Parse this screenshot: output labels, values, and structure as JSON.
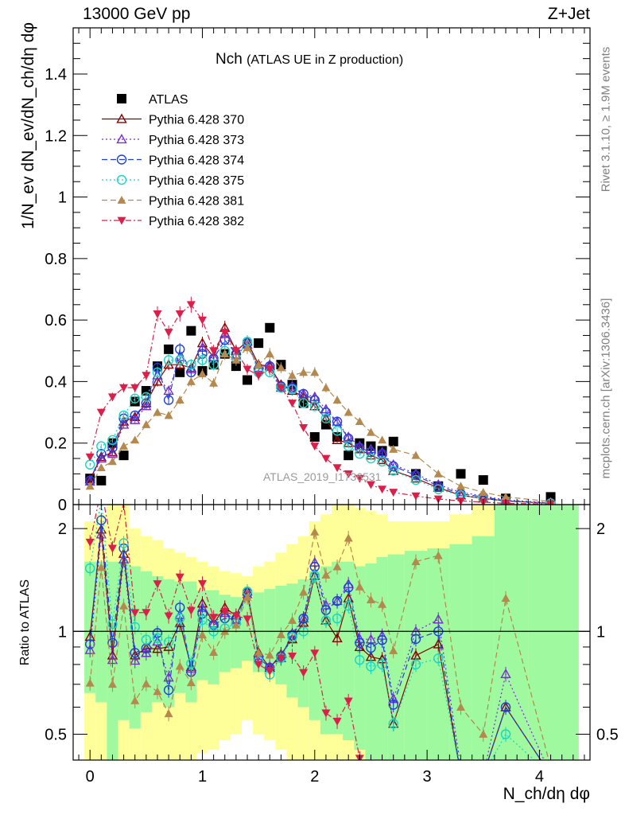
{
  "header": {
    "energy_label": "13000 GeV pp",
    "process_label": "Z+Jet",
    "title_main": "Nch",
    "title_sub": "(ATLAS UE in Z production)",
    "rivet_label": "Rivet 3.1.10, ≥ 1.9M events",
    "mcplots_label": "mcplots.cern.ch [arXiv:1306.3436]",
    "analysis_label": "ATLAS_2019_I1736531"
  },
  "axes": {
    "ylabel_top": "1/N_ev dN_ev/dN_ch/dη dφ",
    "ylabel_bottom": "Ratio to ATLAS",
    "xlabel": "N_ch/dη dφ",
    "x_ticks": [
      "0",
      "1",
      "2",
      "3",
      "4"
    ],
    "y_ticks_top": [
      "0",
      "0.2",
      "0.4",
      "0.6",
      "0.8",
      "1",
      "1.2",
      "1.4"
    ],
    "y_ticks_bottom": [
      "0.5",
      "1",
      "2"
    ]
  },
  "chart_data": {
    "type": "scatter",
    "xlabel": "N_ch/dη dφ",
    "ylabel": "1/N_ev dN_ev/dN_ch/dη dφ",
    "xlim": [
      -0.15,
      4.45
    ],
    "ylim": [
      0,
      1.55
    ],
    "ratio_ylabel": "Ratio to ATLAS",
    "ratio_ylim": [
      0.42,
      2.35
    ],
    "ratio_log": true,
    "x": [
      0.0,
      0.1,
      0.2,
      0.3,
      0.4,
      0.5,
      0.6,
      0.7,
      0.8,
      0.9,
      1.0,
      1.1,
      1.2,
      1.3,
      1.4,
      1.5,
      1.6,
      1.7,
      1.8,
      1.9,
      2.0,
      2.1,
      2.2,
      2.3,
      2.4,
      2.5,
      2.6,
      2.7,
      2.9,
      3.1,
      3.3,
      3.5,
      3.7,
      4.1
    ],
    "series": [
      {
        "name": "ATLAS",
        "color": "#000000",
        "marker": "square-filled",
        "values": [
          0.085,
          0.078,
          0.2,
          0.16,
          0.335,
          0.37,
          0.45,
          0.505,
          0.43,
          0.565,
          0.435,
          0.455,
          0.49,
          0.45,
          0.405,
          0.525,
          0.575,
          0.455,
          0.39,
          0.33,
          0.22,
          0.26,
          0.22,
          0.16,
          0.2,
          0.19,
          0.175,
          0.205,
          0.1,
          0.06,
          0.1,
          0.08,
          0.02,
          0.025
        ]
      },
      {
        "name": "Pythia 6.428 370",
        "color": "#8b0000",
        "marker": "triangle-up-open",
        "dash": "",
        "values": [
          0.082,
          0.155,
          0.17,
          0.27,
          0.285,
          0.33,
          0.4,
          0.455,
          0.455,
          0.445,
          0.525,
          0.48,
          0.575,
          0.5,
          0.53,
          0.455,
          0.45,
          0.39,
          0.37,
          0.35,
          0.32,
          0.28,
          0.21,
          0.2,
          0.18,
          0.16,
          0.145,
          0.11,
          0.085,
          0.055,
          0.03,
          0.02,
          0.012,
          0.004
        ]
      },
      {
        "name": "Pythia 6.428 373",
        "color": "#7b2fcf",
        "marker": "triangle-up-open",
        "dash": "2,3",
        "values": [
          0.075,
          0.15,
          0.165,
          0.26,
          0.275,
          0.32,
          0.42,
          0.37,
          0.48,
          0.44,
          0.51,
          0.48,
          0.555,
          0.485,
          0.52,
          0.445,
          0.455,
          0.38,
          0.385,
          0.36,
          0.35,
          0.31,
          0.27,
          0.22,
          0.19,
          0.18,
          0.17,
          0.13,
          0.1,
          0.065,
          0.04,
          0.028,
          0.015,
          0.006
        ]
      },
      {
        "name": "Pythia 6.428 374",
        "color": "#1f3fdc",
        "marker": "circle-open",
        "dash": "7,4",
        "values": [
          0.078,
          0.165,
          0.185,
          0.28,
          0.29,
          0.33,
          0.445,
          0.34,
          0.505,
          0.43,
          0.49,
          0.475,
          0.535,
          0.49,
          0.525,
          0.44,
          0.45,
          0.385,
          0.38,
          0.36,
          0.34,
          0.3,
          0.27,
          0.215,
          0.185,
          0.17,
          0.165,
          0.125,
          0.095,
          0.06,
          0.035,
          0.025,
          0.012,
          0.005
        ]
      },
      {
        "name": "Pythia 6.428 375",
        "color": "#17d6c4",
        "marker": "circle-open",
        "dash": "2,3",
        "values": [
          0.13,
          0.19,
          0.21,
          0.29,
          0.345,
          0.35,
          0.43,
          0.47,
          0.47,
          0.455,
          0.47,
          0.455,
          0.5,
          0.475,
          0.53,
          0.43,
          0.43,
          0.38,
          0.375,
          0.33,
          0.32,
          0.28,
          0.24,
          0.19,
          0.165,
          0.15,
          0.14,
          0.11,
          0.08,
          0.05,
          0.03,
          0.02,
          0.01,
          0.004
        ]
      },
      {
        "name": "Pythia 6.428 381",
        "color": "#b5884d",
        "marker": "triangle-up-filled",
        "dash": "7,4",
        "values": [
          0.06,
          0.12,
          0.14,
          0.19,
          0.21,
          0.26,
          0.3,
          0.29,
          0.34,
          0.4,
          0.425,
          0.395,
          0.49,
          0.47,
          0.51,
          0.455,
          0.49,
          0.445,
          0.42,
          0.43,
          0.43,
          0.38,
          0.34,
          0.3,
          0.27,
          0.235,
          0.21,
          0.18,
          0.16,
          0.1,
          0.06,
          0.04,
          0.025,
          0.01
        ]
      },
      {
        "name": "Pythia 6.428 382",
        "color": "#dc1f4a",
        "marker": "triangle-down-filled",
        "dash": "7,3,2,3",
        "values": [
          0.155,
          0.3,
          0.35,
          0.38,
          0.38,
          0.42,
          0.62,
          0.56,
          0.62,
          0.65,
          0.6,
          0.5,
          0.56,
          0.5,
          0.44,
          0.42,
          0.44,
          0.38,
          0.33,
          0.25,
          0.19,
          0.15,
          0.12,
          0.1,
          0.085,
          0.065,
          0.05,
          0.04,
          0.028,
          0.018,
          0.012,
          0.008,
          0.004,
          0.002
        ]
      }
    ],
    "ratio": {
      "band_inner": [
        [
          0.66,
          1.6
        ],
        [
          0.62,
          1.6
        ],
        [
          0.42,
          1.6
        ],
        [
          0.55,
          1.6
        ],
        [
          0.52,
          1.55
        ],
        [
          0.58,
          1.5
        ],
        [
          0.62,
          1.45
        ],
        [
          0.6,
          1.42
        ],
        [
          0.66,
          1.4
        ],
        [
          0.62,
          1.4
        ],
        [
          0.72,
          1.32
        ],
        [
          0.7,
          1.32
        ],
        [
          0.76,
          1.28
        ],
        [
          0.78,
          1.26
        ],
        [
          0.82,
          1.24
        ],
        [
          0.76,
          1.3
        ],
        [
          0.75,
          1.33
        ],
        [
          0.7,
          1.36
        ],
        [
          0.64,
          1.38
        ],
        [
          0.6,
          1.42
        ],
        [
          0.55,
          1.5
        ],
        [
          0.5,
          1.55
        ],
        [
          0.5,
          1.6
        ],
        [
          0.48,
          1.6
        ],
        [
          0.45,
          1.55
        ],
        [
          0.42,
          1.58
        ],
        [
          0.42,
          1.65
        ],
        [
          0.42,
          1.68
        ],
        [
          0.42,
          1.72
        ],
        [
          0.42,
          1.75
        ],
        [
          0.42,
          1.8
        ],
        [
          0.42,
          1.9
        ],
        [
          0.42,
          2.35
        ],
        [
          0.42,
          2.35
        ]
      ],
      "band_outer": [
        [
          0.42,
          2.1
        ],
        [
          0.42,
          2.2
        ],
        [
          0.42,
          2.35
        ],
        [
          0.42,
          2.35
        ],
        [
          0.42,
          2.0
        ],
        [
          0.42,
          1.9
        ],
        [
          0.42,
          1.85
        ],
        [
          0.42,
          1.75
        ],
        [
          0.42,
          1.7
        ],
        [
          0.42,
          1.65
        ],
        [
          0.44,
          1.6
        ],
        [
          0.45,
          1.55
        ],
        [
          0.48,
          1.5
        ],
        [
          0.5,
          1.48
        ],
        [
          0.55,
          1.45
        ],
        [
          0.5,
          1.55
        ],
        [
          0.48,
          1.6
        ],
        [
          0.45,
          1.7
        ],
        [
          0.42,
          1.8
        ],
        [
          0.42,
          1.9
        ],
        [
          0.42,
          2.1
        ],
        [
          0.42,
          2.2
        ],
        [
          0.42,
          2.35
        ],
        [
          0.42,
          2.35
        ],
        [
          0.42,
          2.3
        ],
        [
          0.42,
          2.25
        ],
        [
          0.42,
          2.2
        ],
        [
          0.42,
          2.1
        ],
        [
          0.42,
          2.1
        ],
        [
          0.42,
          2.1
        ],
        [
          0.42,
          2.2
        ],
        [
          0.42,
          2.35
        ],
        [
          0.42,
          2.35
        ],
        [
          0.42,
          2.35
        ]
      ],
      "band_inner_color": "#9ff99f",
      "band_outer_color": "#ffff99"
    },
    "legend_position": "top-left",
    "grid": false
  }
}
